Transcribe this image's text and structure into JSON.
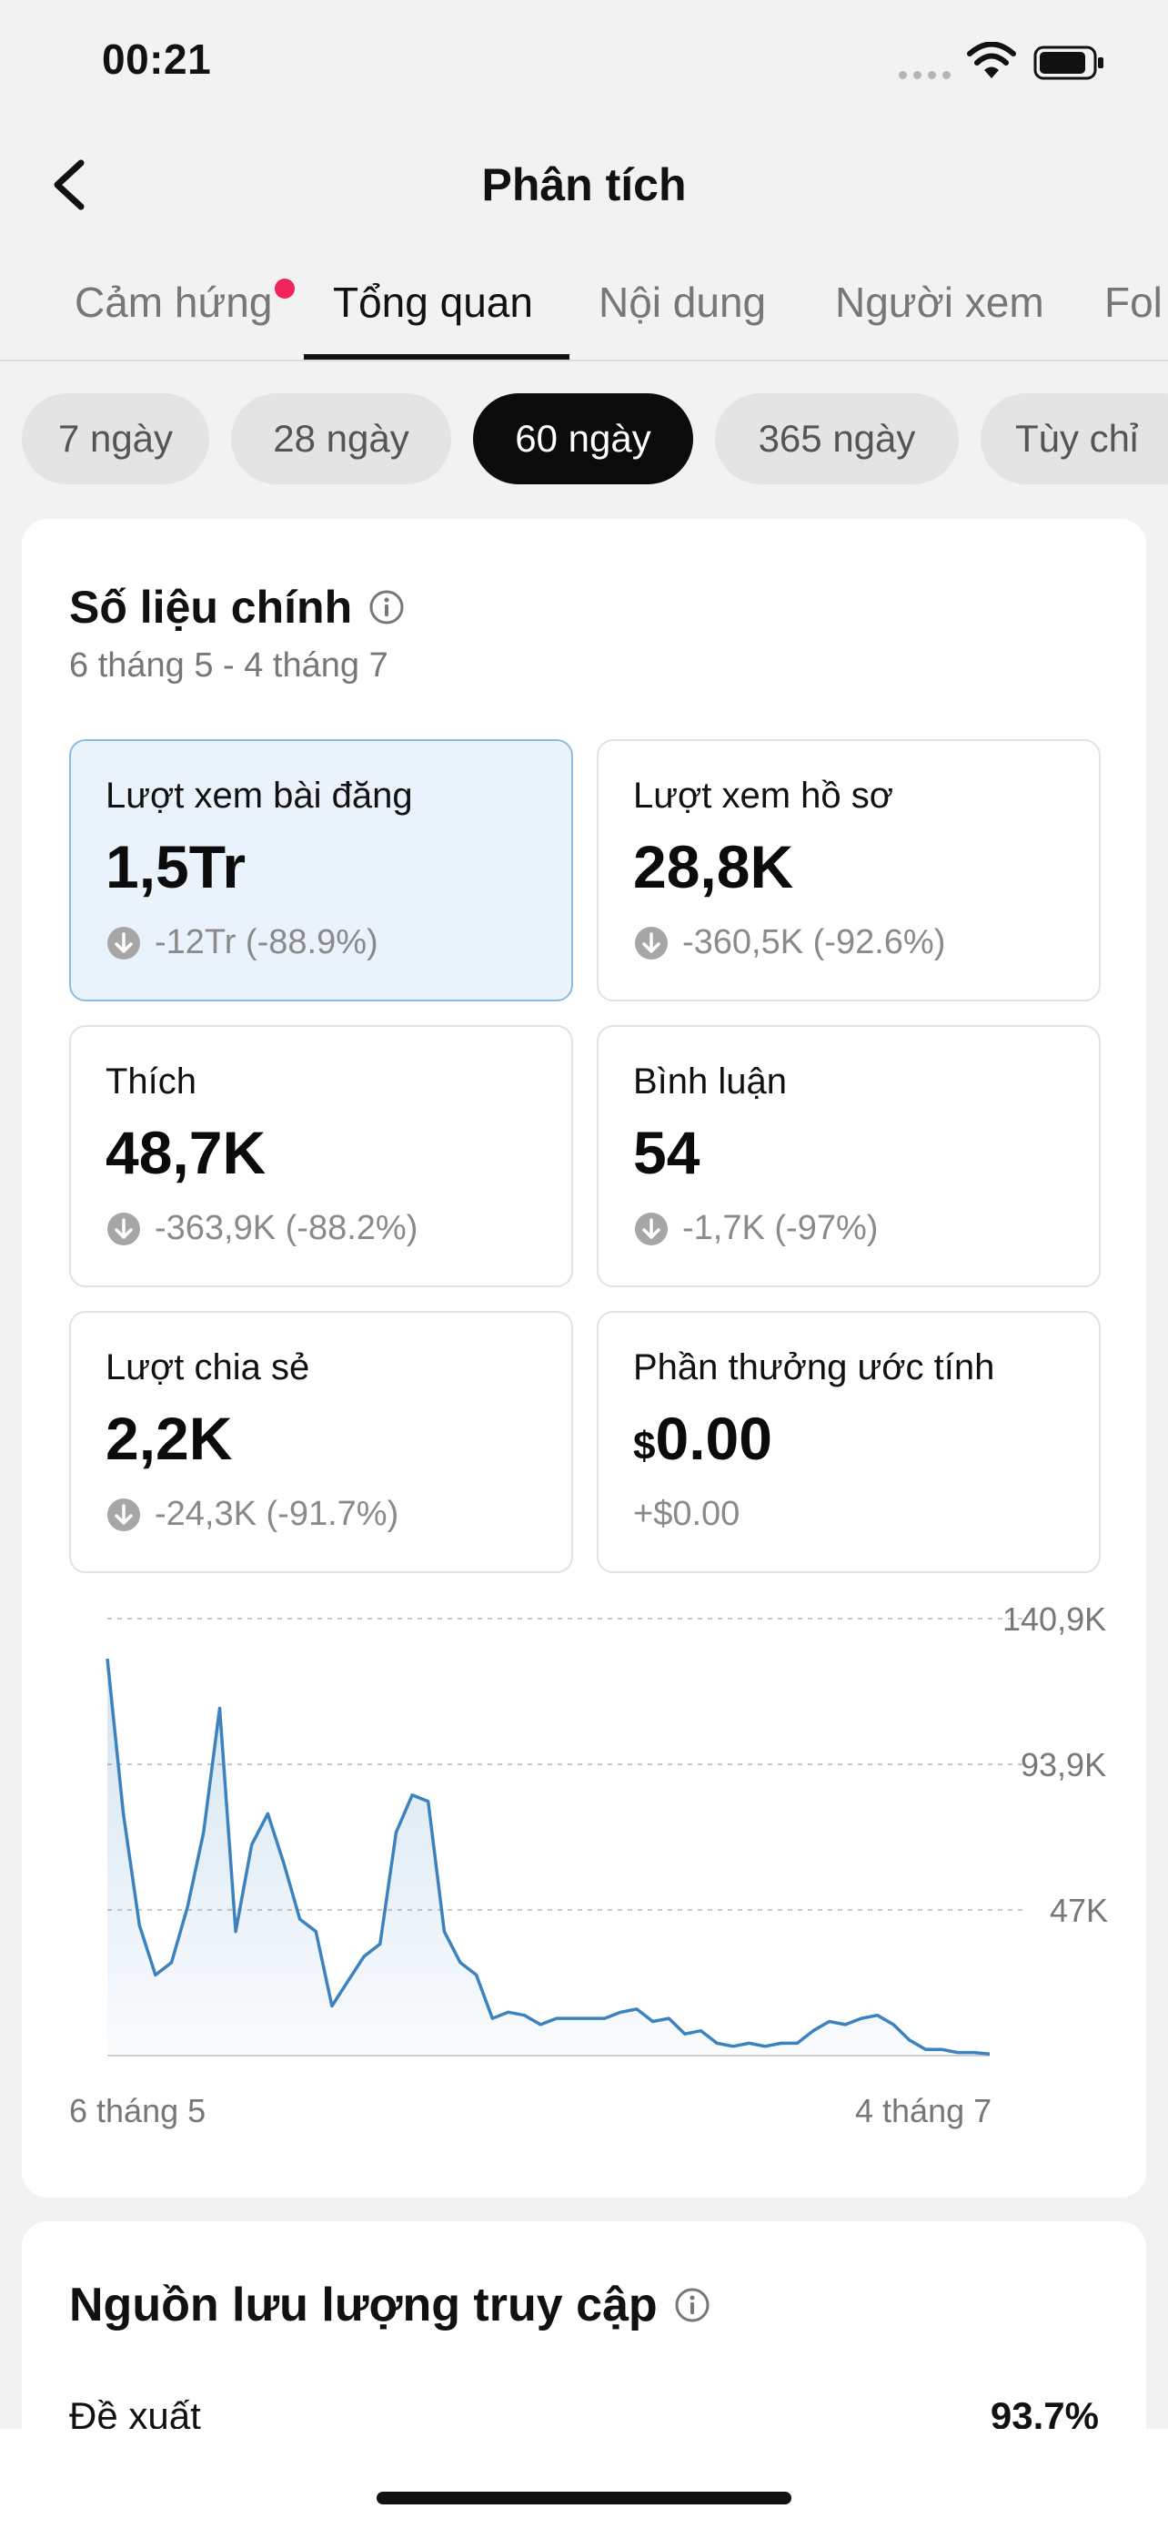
{
  "status_bar": {
    "time": "00:21"
  },
  "header": {
    "title": "Phân tích"
  },
  "tabs": [
    {
      "label": "Cảm hứng",
      "active": false,
      "has_dot": true
    },
    {
      "label": "Tổng quan",
      "active": true
    },
    {
      "label": "Nội dung",
      "active": false
    },
    {
      "label": "Người xem",
      "active": false
    },
    {
      "label": "Fol",
      "active": false
    }
  ],
  "periods": [
    {
      "label": "7 ngày",
      "active": false
    },
    {
      "label": "28 ngày",
      "active": false
    },
    {
      "label": "60 ngày",
      "active": true
    },
    {
      "label": "365 ngày",
      "active": false
    },
    {
      "label": "Tùy chỉ",
      "active": false
    }
  ],
  "key_metrics": {
    "title": "Số liệu chính",
    "date_range": "6 tháng 5 - 4 tháng 7",
    "items": [
      {
        "label": "Lượt xem bài đăng",
        "value": "1,5Tr",
        "change": "-12Tr (-88.9%)",
        "selected": true
      },
      {
        "label": "Lượt xem hồ sơ",
        "value": "28,8K",
        "change": "-360,5K (-92.6%)"
      },
      {
        "label": "Thích",
        "value": "48,7K",
        "change": "-363,9K (-88.2%)"
      },
      {
        "label": "Bình luận",
        "value": "54",
        "change": "-1,7K (-97%)"
      },
      {
        "label": "Lượt chia sẻ",
        "value": "2,2K",
        "change": "-24,3K (-91.7%)"
      },
      {
        "label": "Phần thưởng ước tính",
        "currency": "$",
        "value": "0.00",
        "change": "+$0.00"
      }
    ]
  },
  "chart_data": {
    "type": "area",
    "series": [
      {
        "values": [
          128000,
          78000,
          42000,
          26000,
          30000,
          48000,
          72000,
          112000,
          40000,
          68000,
          78000,
          62000,
          44000,
          40000,
          16000,
          24000,
          32000,
          36000,
          72000,
          84000,
          82000,
          40000,
          30000,
          26000,
          12000,
          14000,
          13000,
          10000,
          12000,
          12000,
          12000,
          12000,
          14000,
          15000,
          11000,
          12000,
          7000,
          8000,
          4000,
          3000,
          4000,
          3000,
          4000,
          4000,
          8000,
          11000,
          10000,
          12000,
          13000,
          10000,
          5000,
          2000,
          2000,
          1000,
          1000,
          500
        ]
      }
    ],
    "x_labels": [
      "6 tháng 5",
      "4 tháng 7"
    ],
    "y_ticks": [
      "140,9K",
      "93,9K",
      "47K"
    ],
    "y_tick_values": [
      140900,
      93900,
      47000
    ],
    "ylim": [
      0,
      140900
    ],
    "grid": "dashed-horizontal",
    "color": "#3c82be"
  },
  "traffic": {
    "title": "Nguồn lưu lượng truy cập",
    "rows": [
      {
        "label": "Đề xuất",
        "value": "93.7%"
      }
    ]
  }
}
